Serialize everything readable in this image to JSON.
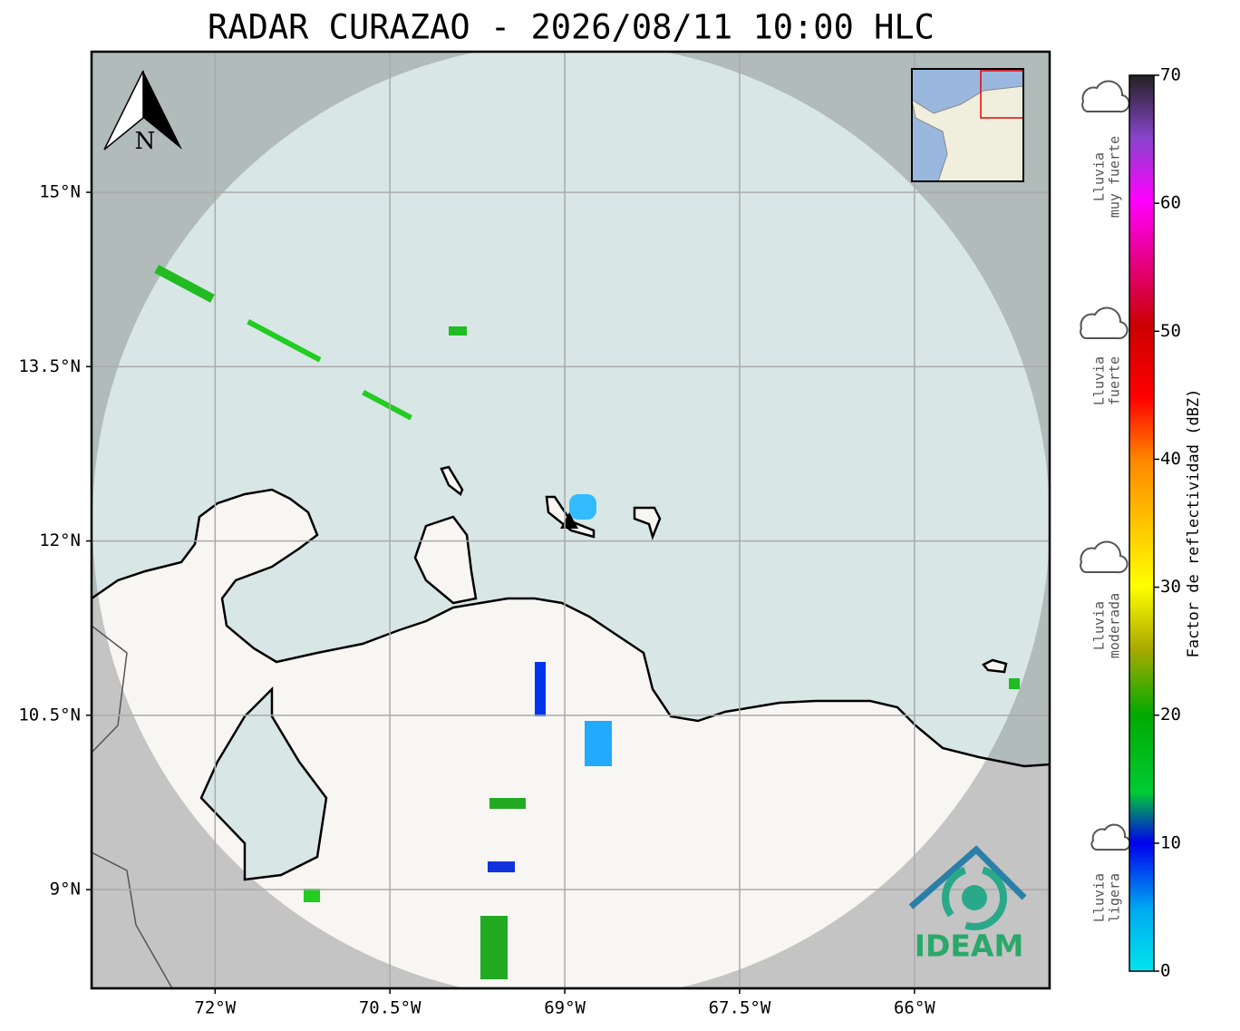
{
  "title": "RADAR CURAZAO - 2026/08/11 10:00 HLC",
  "north_label": "N",
  "logo_text": "IDEAM",
  "map": {
    "lon_range": [
      -73.06,
      -64.84
    ],
    "lat_range": [
      8.15,
      16.21
    ],
    "lon_ticks": [
      {
        "value": -72,
        "label": "72°W"
      },
      {
        "value": -70.5,
        "label": "70.5°W"
      },
      {
        "value": -69,
        "label": "69°W"
      },
      {
        "value": -67.5,
        "label": "67.5°W"
      },
      {
        "value": -66,
        "label": "66°W"
      }
    ],
    "lat_ticks": [
      {
        "value": 9,
        "label": "9°N"
      },
      {
        "value": 10.5,
        "label": "10.5°N"
      },
      {
        "value": 12,
        "label": "12°N"
      },
      {
        "value": 13.5,
        "label": "13.5°N"
      },
      {
        "value": 15,
        "label": "15°N"
      }
    ]
  },
  "colorbar": {
    "label": "Factor de reflectividad (dBZ)",
    "range": [
      0,
      70
    ],
    "ticks": [
      0,
      10,
      20,
      30,
      40,
      50,
      60,
      70
    ]
  },
  "legend": [
    {
      "lines": [
        "Lluvia",
        "muy fuerte"
      ]
    },
    {
      "lines": [
        "Lluvia",
        "fuerte"
      ]
    },
    {
      "lines": [
        "Lluvia",
        "moderada"
      ]
    },
    {
      "lines": [
        "Lluvia",
        "ligera"
      ]
    }
  ]
}
